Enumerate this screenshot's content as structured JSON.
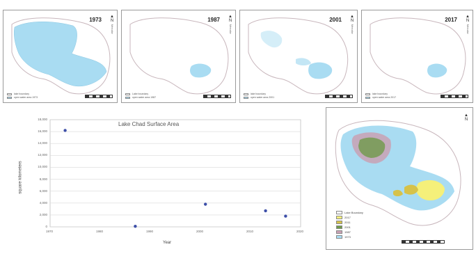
{
  "maps": [
    {
      "year": "1973",
      "legend": [
        "lake boundary",
        "open water area 1973"
      ]
    },
    {
      "year": "1987",
      "legend": [
        "Lake boundary",
        "open water area 1987"
      ]
    },
    {
      "year": "2001",
      "legend": [
        "lake boundary",
        "open water area 2001"
      ]
    },
    {
      "year": "2017",
      "legend": [
        "lake boundary",
        "open water area 2017"
      ]
    }
  ],
  "colors": {
    "water": "#a9dcf2",
    "boundary": "#c8b6bc",
    "point": "#3d4fa8",
    "y2017": "#f5f07a",
    "y2011": "#d6c24a",
    "y2001": "#6f9a4a",
    "y1987": "#c9a1b4",
    "y1973": "#a9dcf2"
  },
  "north_label": "N",
  "north_sub": "Mercator",
  "chart_data": {
    "type": "scatter",
    "title": "Lake Chad Surface Area",
    "xlabel": "Year",
    "ylabel": "square kilometers",
    "xlim": [
      1970,
      2020
    ],
    "ylim": [
      0,
      18000
    ],
    "x_ticks": [
      "1970",
      "1980",
      "1990",
      "2000",
      "2010",
      "2020"
    ],
    "y_ticks": [
      "0",
      "2,000",
      "4,000",
      "6,000",
      "8,000",
      "10,000",
      "12,000",
      "14,000",
      "16,000",
      "18,000"
    ],
    "series": [
      {
        "x": [
          1973,
          1987,
          2001,
          2013,
          2017
        ],
        "y": [
          16200,
          100,
          3800,
          2700,
          1800
        ]
      }
    ]
  },
  "overlay_legend": [
    {
      "label": "Lake Boundary",
      "color": "#ffffff"
    },
    {
      "label": "2017",
      "color": "#f5f07a"
    },
    {
      "label": "2011",
      "color": "#d6c24a"
    },
    {
      "label": "2001",
      "color": "#6f9a4a"
    },
    {
      "label": "1987",
      "color": "#c9a1b4"
    },
    {
      "label": "1973",
      "color": "#a9dcf2"
    }
  ]
}
